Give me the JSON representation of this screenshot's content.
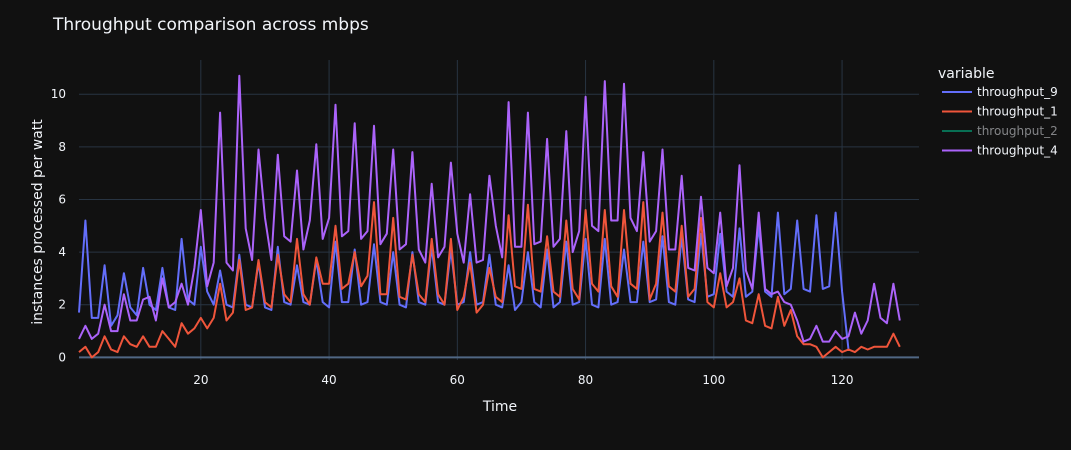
{
  "chart_data": {
    "type": "line",
    "title": "Throughput comparison across mbps",
    "xlabel": "Time",
    "ylabel": "instances processed per watt",
    "xlim": [
      1,
      132
    ],
    "ylim": [
      -0.1,
      11.3
    ],
    "x_ticks": [
      20,
      40,
      60,
      80,
      100,
      120
    ],
    "y_ticks": [
      0,
      2,
      4,
      6,
      8,
      10
    ],
    "grid": true,
    "legend": {
      "title": "variable",
      "placement": "right"
    },
    "colors": {
      "background": "#111111",
      "grid": "#283442",
      "zeroline": "#506784",
      "text": "#f2f5fa"
    },
    "series": [
      {
        "name": "throughput_9",
        "color": "#636efa",
        "visible": true,
        "x_start": 1,
        "values": [
          1.7,
          5.2,
          1.5,
          1.5,
          3.5,
          1.2,
          1.6,
          3.2,
          1.9,
          1.6,
          3.4,
          2.0,
          1.8,
          3.4,
          1.9,
          1.8,
          4.5,
          2.2,
          2.0,
          4.2,
          2.5,
          2.0,
          3.3,
          2.0,
          1.9,
          3.9,
          2.0,
          1.9,
          3.6,
          1.9,
          1.8,
          4.2,
          2.1,
          2.0,
          3.5,
          2.1,
          2.0,
          3.7,
          2.1,
          1.9,
          4.4,
          2.1,
          2.1,
          4.1,
          2.0,
          2.1,
          4.3,
          2.1,
          2.0,
          4.0,
          2.0,
          1.9,
          4.0,
          2.1,
          2.0,
          4.2,
          2.1,
          2.0,
          4.1,
          2.0,
          2.1,
          4.0,
          2.0,
          2.1,
          3.9,
          2.0,
          1.9,
          3.5,
          1.8,
          2.1,
          4.0,
          2.1,
          1.9,
          4.1,
          1.9,
          2.1,
          4.4,
          2.0,
          2.1,
          4.5,
          2.0,
          1.9,
          4.5,
          2.0,
          2.1,
          4.1,
          2.1,
          2.1,
          4.4,
          2.1,
          2.2,
          4.6,
          2.1,
          2.0,
          4.6,
          2.2,
          2.1,
          4.7,
          2.3,
          2.4,
          4.7,
          2.5,
          2.3,
          4.9,
          2.3,
          2.5,
          5.0,
          2.5,
          2.3,
          5.5,
          2.4,
          2.6,
          5.2,
          2.6,
          2.5,
          5.4,
          2.6,
          2.7,
          5.5,
          2.5,
          0.3
        ]
      },
      {
        "name": "throughput_1",
        "color": "#ef553b",
        "visible": true,
        "x_start": 1,
        "values": [
          0.2,
          0.4,
          0.0,
          0.2,
          0.8,
          0.3,
          0.2,
          0.8,
          0.5,
          0.4,
          0.8,
          0.4,
          0.4,
          1.0,
          0.7,
          0.4,
          1.3,
          0.9,
          1.1,
          1.5,
          1.1,
          1.5,
          2.8,
          1.4,
          1.7,
          3.7,
          1.8,
          1.9,
          3.7,
          2.1,
          1.9,
          3.9,
          2.4,
          2.1,
          4.5,
          2.4,
          2.0,
          3.8,
          2.8,
          2.8,
          5.0,
          2.6,
          2.8,
          4.0,
          2.7,
          3.1,
          5.9,
          2.4,
          2.4,
          5.3,
          2.3,
          2.2,
          3.9,
          2.4,
          2.1,
          4.5,
          2.4,
          2.0,
          4.5,
          1.8,
          2.3,
          3.6,
          1.7,
          2.0,
          3.4,
          2.3,
          2.1,
          5.4,
          2.7,
          2.6,
          5.8,
          2.6,
          2.5,
          4.6,
          2.5,
          2.3,
          5.2,
          2.6,
          2.2,
          5.6,
          2.8,
          2.5,
          5.6,
          2.7,
          2.3,
          5.6,
          2.8,
          2.6,
          5.9,
          2.2,
          2.8,
          5.5,
          2.7,
          2.5,
          5.0,
          2.3,
          2.6,
          5.3,
          2.1,
          1.9,
          3.2,
          1.9,
          2.1,
          3.0,
          1.4,
          1.3,
          2.4,
          1.2,
          1.1,
          2.3,
          1.2,
          1.8,
          0.8,
          0.5,
          0.5,
          0.4,
          0.0,
          0.2,
          0.4,
          0.2,
          0.3,
          0.2,
          0.4,
          0.3,
          0.4,
          0.4,
          0.4,
          0.9,
          0.4
        ]
      },
      {
        "name": "throughput_2",
        "color": "#00cc96",
        "visible": false,
        "x_start": 1,
        "values": []
      },
      {
        "name": "throughput_4",
        "color": "#ab63fa",
        "visible": true,
        "x_start": 1,
        "values": [
          0.7,
          1.2,
          0.7,
          0.9,
          2.0,
          1.0,
          1.0,
          2.4,
          1.4,
          1.4,
          2.2,
          2.3,
          1.4,
          3.0,
          1.9,
          2.1,
          2.8,
          2.0,
          3.4,
          5.6,
          2.7,
          3.6,
          9.3,
          3.6,
          3.3,
          10.7,
          4.9,
          3.7,
          7.9,
          5.3,
          3.7,
          7.7,
          4.6,
          4.4,
          7.1,
          4.1,
          5.2,
          8.1,
          4.5,
          5.3,
          9.6,
          4.6,
          4.8,
          8.9,
          4.5,
          4.8,
          8.8,
          4.3,
          4.7,
          7.9,
          4.1,
          4.3,
          7.8,
          4.1,
          3.6,
          6.6,
          3.8,
          4.2,
          7.4,
          4.7,
          3.6,
          6.2,
          3.6,
          3.7,
          6.9,
          5.0,
          3.8,
          9.7,
          4.2,
          4.2,
          9.3,
          4.3,
          4.4,
          8.3,
          4.2,
          4.5,
          8.6,
          4.0,
          4.8,
          9.9,
          5.0,
          4.8,
          10.5,
          5.2,
          5.2,
          10.4,
          5.3,
          4.8,
          7.8,
          4.4,
          4.8,
          7.9,
          4.1,
          4.1,
          6.9,
          3.4,
          3.3,
          6.1,
          3.4,
          3.2,
          5.5,
          2.7,
          3.4,
          7.3,
          3.3,
          2.6,
          5.5,
          2.6,
          2.4,
          2.5,
          2.1,
          2.0,
          1.4,
          0.6,
          0.7,
          1.2,
          0.6,
          0.6,
          1.0,
          0.7,
          0.8,
          1.7,
          0.9,
          1.4,
          2.8,
          1.5,
          1.3,
          2.8,
          1.4
        ]
      }
    ]
  }
}
